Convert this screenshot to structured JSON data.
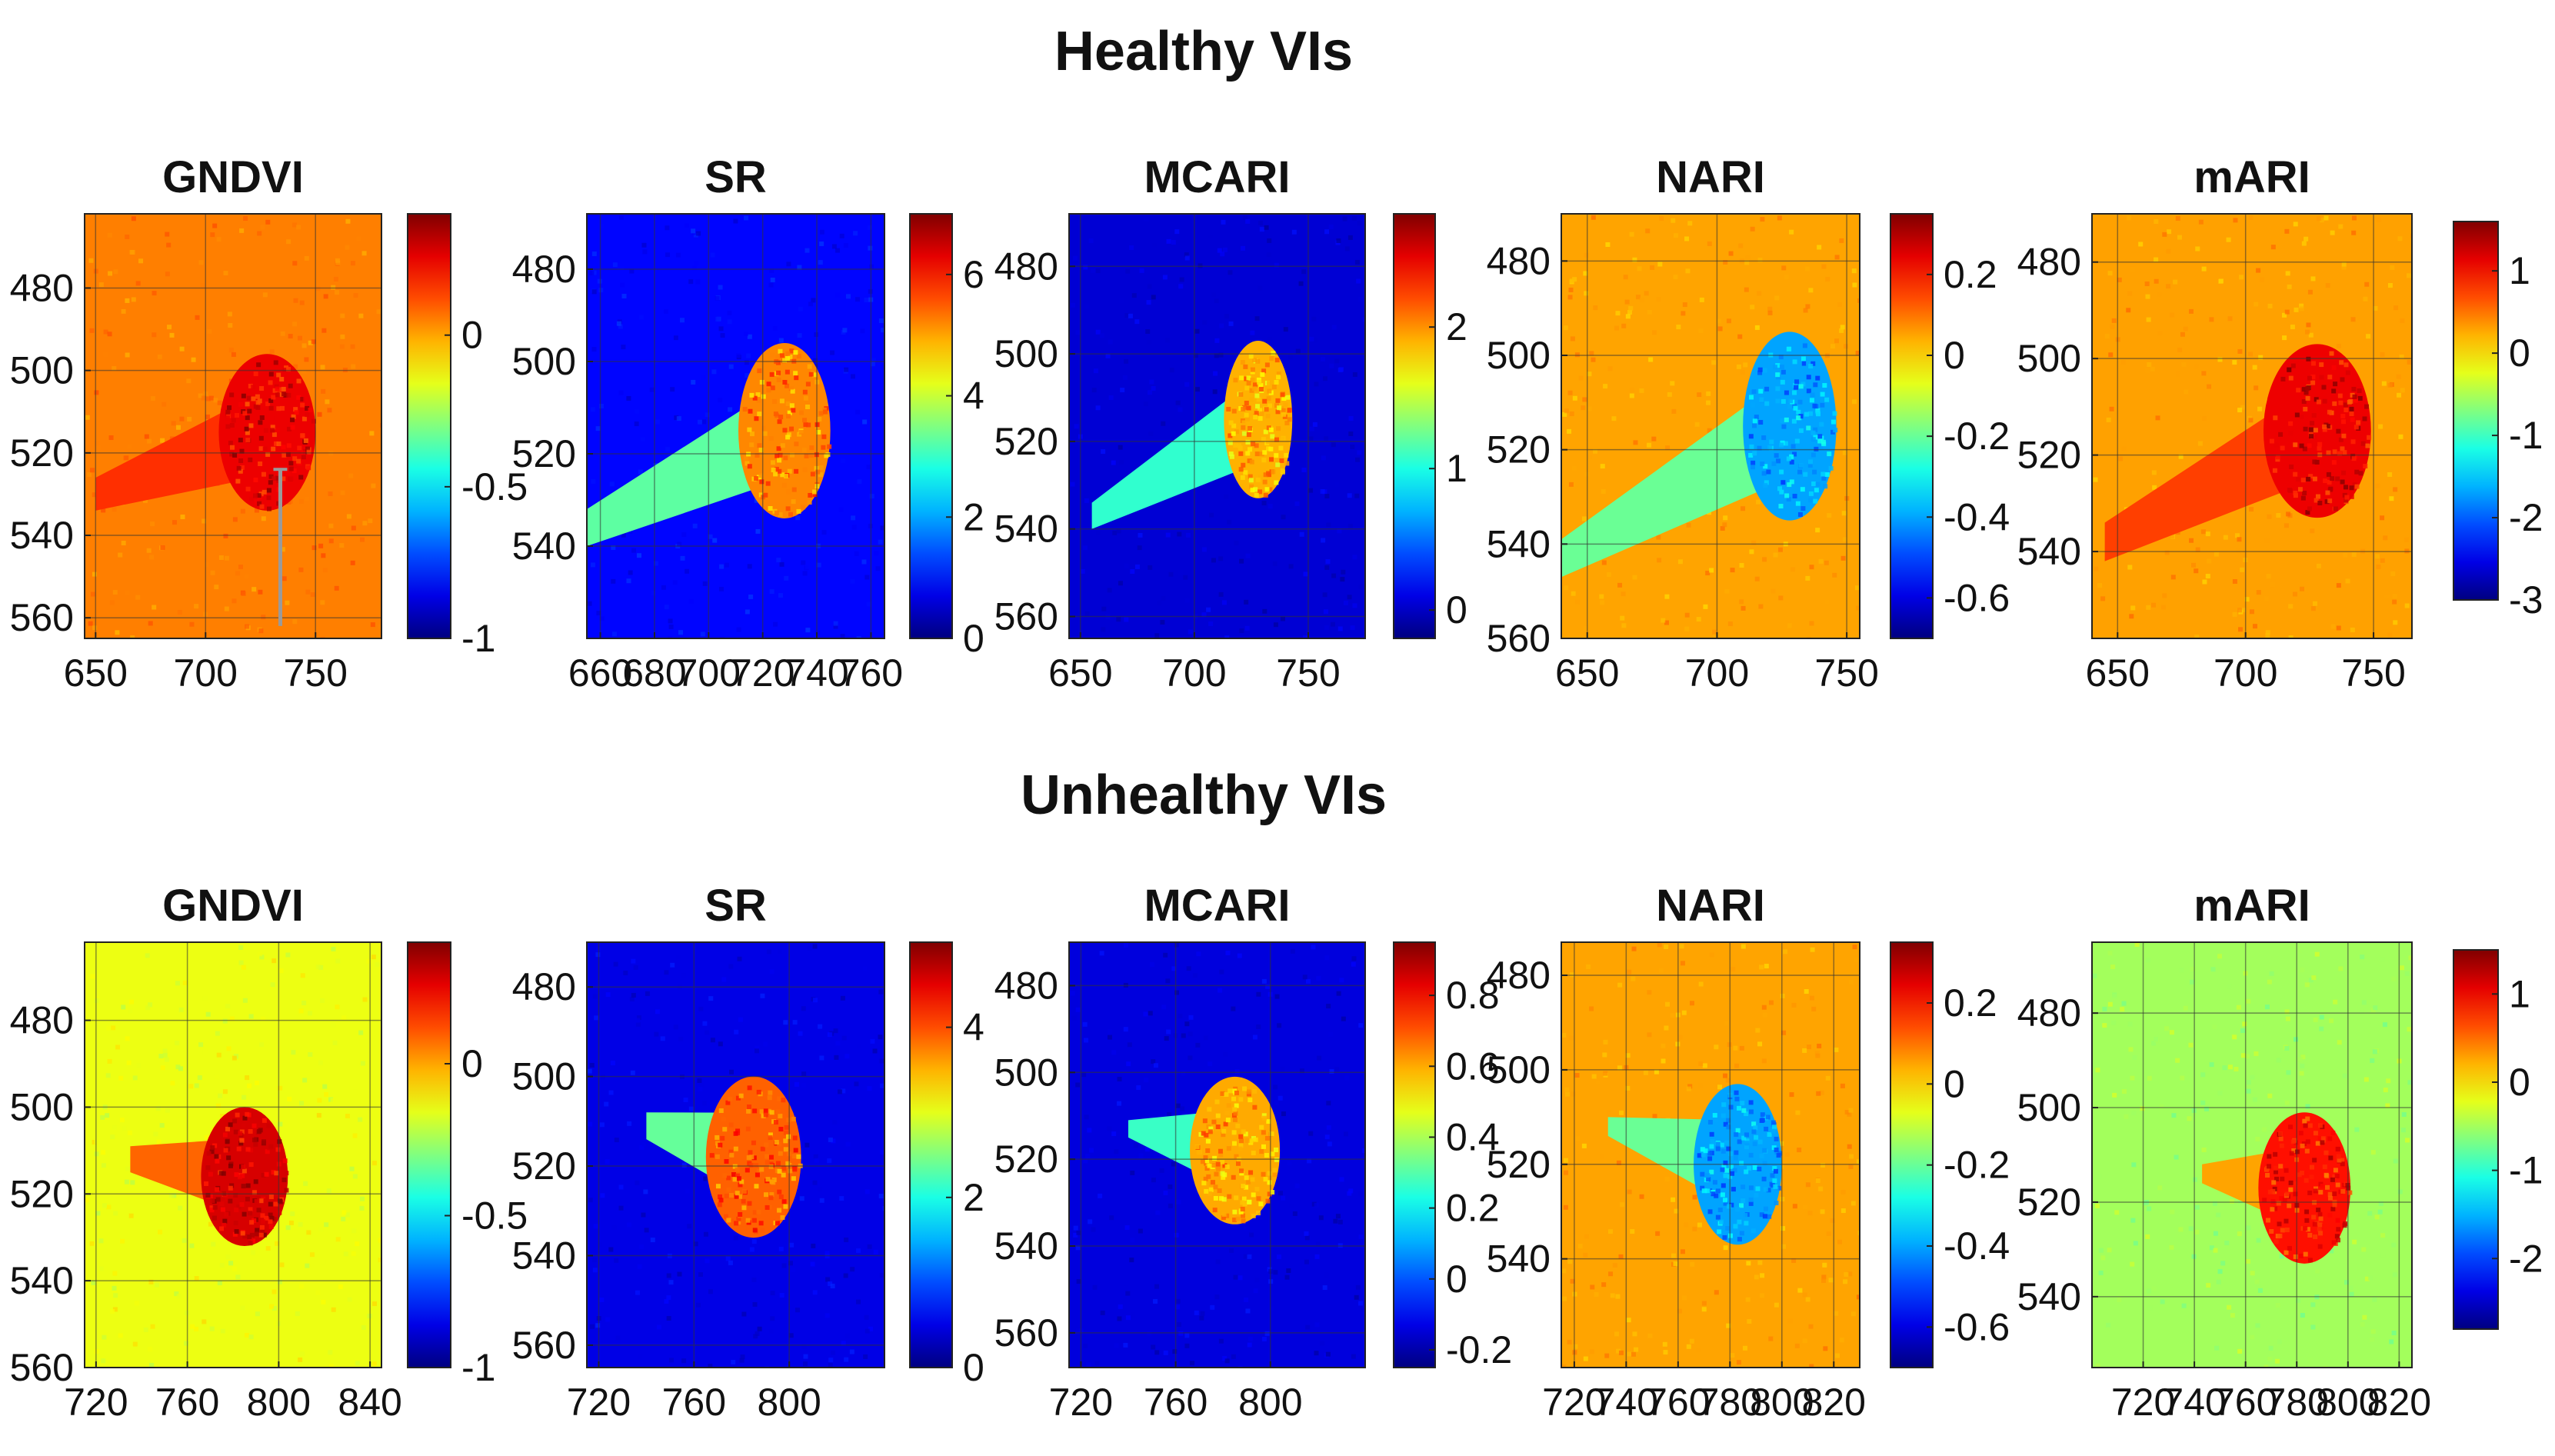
{
  "figure": {
    "rows": [
      {
        "title": "Healthy VIs"
      },
      {
        "title": "Unhealthy VIs"
      }
    ]
  },
  "chart_data": [
    {
      "type": "heatmap",
      "group": "Healthy VIs",
      "title": "GNDVI",
      "xlim": [
        645,
        780
      ],
      "ylim": [
        565,
        462
      ],
      "x_ticks": [
        650,
        700,
        750
      ],
      "y_ticks": [
        480,
        500,
        520,
        540,
        560
      ],
      "colorbar": {
        "range": [
          -1,
          0.4
        ],
        "ticks": [
          -1,
          -0.5,
          0
        ]
      },
      "background_value": 0.05,
      "blob_value": 0.25,
      "blob": {
        "cx": 728,
        "cy": 515,
        "rx": 22,
        "ry": 19,
        "tail_x": 650,
        "tail_y": 530,
        "tail_width": 4
      },
      "marker": {
        "x": 734,
        "y_from": 524,
        "y_to": 562
      }
    },
    {
      "type": "heatmap",
      "group": "Healthy VIs",
      "title": "SR",
      "xlim": [
        655,
        765
      ],
      "ylim": [
        560,
        468
      ],
      "x_ticks": [
        660,
        680,
        700,
        720,
        740,
        760
      ],
      "y_ticks": [
        480,
        500,
        520,
        540
      ],
      "colorbar": {
        "range": [
          0,
          7
        ],
        "ticks": [
          0,
          2,
          4,
          6
        ]
      },
      "background_value": 0.9,
      "blob_value": 5.2,
      "blob": {
        "cx": 728,
        "cy": 515,
        "rx": 17,
        "ry": 19,
        "tail_x": 655,
        "tail_y": 536,
        "tail_width": 4
      }
    },
    {
      "type": "heatmap",
      "group": "Healthy VIs",
      "title": "MCARI",
      "xlim": [
        645,
        775
      ],
      "ylim": [
        565,
        468
      ],
      "x_ticks": [
        650,
        700,
        750
      ],
      "y_ticks": [
        480,
        500,
        520,
        540,
        560
      ],
      "colorbar": {
        "range": [
          -0.2,
          2.8
        ],
        "ticks": [
          0,
          1,
          2
        ]
      },
      "background_value": 0.05,
      "blob_value": 1.9,
      "blob": {
        "cx": 728,
        "cy": 515,
        "rx": 15,
        "ry": 18,
        "tail_x": 655,
        "tail_y": 537,
        "tail_width": 3
      }
    },
    {
      "type": "heatmap",
      "group": "Healthy VIs",
      "title": "NARI",
      "xlim": [
        640,
        755
      ],
      "ylim": [
        560,
        470
      ],
      "x_ticks": [
        650,
        700,
        750
      ],
      "y_ticks": [
        480,
        500,
        520,
        540,
        560
      ],
      "colorbar": {
        "range": [
          -0.7,
          0.35
        ],
        "ticks": [
          -0.6,
          -0.4,
          -0.2,
          0,
          0.2
        ]
      },
      "background_value": 0.05,
      "blob_value": -0.4,
      "blob": {
        "cx": 728,
        "cy": 515,
        "rx": 18,
        "ry": 20,
        "tail_x": 640,
        "tail_y": 543,
        "tail_width": 4
      }
    },
    {
      "type": "heatmap",
      "group": "Healthy VIs",
      "title": "mARI",
      "xlim": [
        640,
        765
      ],
      "ylim": [
        558,
        470
      ],
      "x_ticks": [
        650,
        700,
        750
      ],
      "y_ticks": [
        480,
        500,
        520,
        540
      ],
      "colorbar": {
        "range": [
          -3,
          1.6
        ],
        "ticks": [
          -3,
          -2,
          -1,
          0,
          1
        ]
      },
      "background_value": 0.3,
      "blob_value": 1.1,
      "blob": {
        "cx": 728,
        "cy": 515,
        "rx": 21,
        "ry": 18,
        "tail_x": 645,
        "tail_y": 538,
        "tail_width": 4
      }
    },
    {
      "type": "heatmap",
      "group": "Unhealthy VIs",
      "title": "GNDVI",
      "xlim": [
        715,
        845
      ],
      "ylim": [
        560,
        462
      ],
      "x_ticks": [
        720,
        760,
        800,
        840
      ],
      "y_ticks": [
        480,
        500,
        520,
        540,
        560
      ],
      "colorbar": {
        "range": [
          -1,
          0.4
        ],
        "ticks": [
          -1,
          -0.5,
          0
        ]
      },
      "background_value": -0.15,
      "blob_value": 0.28,
      "blob": {
        "cx": 785,
        "cy": 516,
        "rx": 19,
        "ry": 16,
        "tail_x": 735,
        "tail_y": 512,
        "tail_width": 3
      }
    },
    {
      "type": "heatmap",
      "group": "Unhealthy VIs",
      "title": "SR",
      "xlim": [
        715,
        840
      ],
      "ylim": [
        565,
        470
      ],
      "x_ticks": [
        720,
        760,
        800
      ],
      "y_ticks": [
        480,
        500,
        520,
        540,
        560
      ],
      "colorbar": {
        "range": [
          0,
          5
        ],
        "ticks": [
          0,
          2,
          4
        ]
      },
      "background_value": 0.5,
      "blob_value": 3.9,
      "blob": {
        "cx": 785,
        "cy": 518,
        "rx": 20,
        "ry": 18,
        "tail_x": 740,
        "tail_y": 511,
        "tail_width": 3
      }
    },
    {
      "type": "heatmap",
      "group": "Unhealthy VIs",
      "title": "MCARI",
      "xlim": [
        715,
        840
      ],
      "ylim": [
        568,
        470
      ],
      "x_ticks": [
        720,
        760,
        800
      ],
      "y_ticks": [
        480,
        500,
        520,
        540,
        560
      ],
      "colorbar": {
        "range": [
          -0.25,
          0.95
        ],
        "ticks": [
          -0.2,
          0,
          0.2,
          0.4,
          0.6,
          0.8
        ]
      },
      "background_value": -0.14,
      "blob_value": 0.6,
      "blob": {
        "cx": 785,
        "cy": 518,
        "rx": 19,
        "ry": 17,
        "tail_x": 740,
        "tail_y": 513,
        "tail_width": 2
      }
    },
    {
      "type": "heatmap",
      "group": "Unhealthy VIs",
      "title": "NARI",
      "xlim": [
        715,
        830
      ],
      "ylim": [
        563,
        473
      ],
      "x_ticks": [
        720,
        740,
        760,
        780,
        800,
        820
      ],
      "y_ticks": [
        480,
        500,
        520,
        540
      ],
      "colorbar": {
        "range": [
          -0.7,
          0.35
        ],
        "ticks": [
          -0.6,
          -0.4,
          -0.2,
          0,
          0.2
        ]
      },
      "background_value": 0.05,
      "blob_value": -0.4,
      "blob": {
        "cx": 783,
        "cy": 520,
        "rx": 17,
        "ry": 17,
        "tail_x": 733,
        "tail_y": 512,
        "tail_width": 2
      }
    },
    {
      "type": "heatmap",
      "group": "Unhealthy VIs",
      "title": "mARI",
      "xlim": [
        700,
        825
      ],
      "ylim": [
        555,
        465
      ],
      "x_ticks": [
        720,
        740,
        760,
        780,
        800,
        820
      ],
      "y_ticks": [
        480,
        500,
        520,
        540
      ],
      "colorbar": {
        "range": [
          -2.8,
          1.5
        ],
        "ticks": [
          -2,
          -1,
          0,
          1
        ]
      },
      "background_value": -0.5,
      "blob_value": 0.9,
      "blob": {
        "cx": 783,
        "cy": 517,
        "rx": 18,
        "ry": 16,
        "tail_x": 743,
        "tail_y": 514,
        "tail_width": 2
      }
    }
  ]
}
